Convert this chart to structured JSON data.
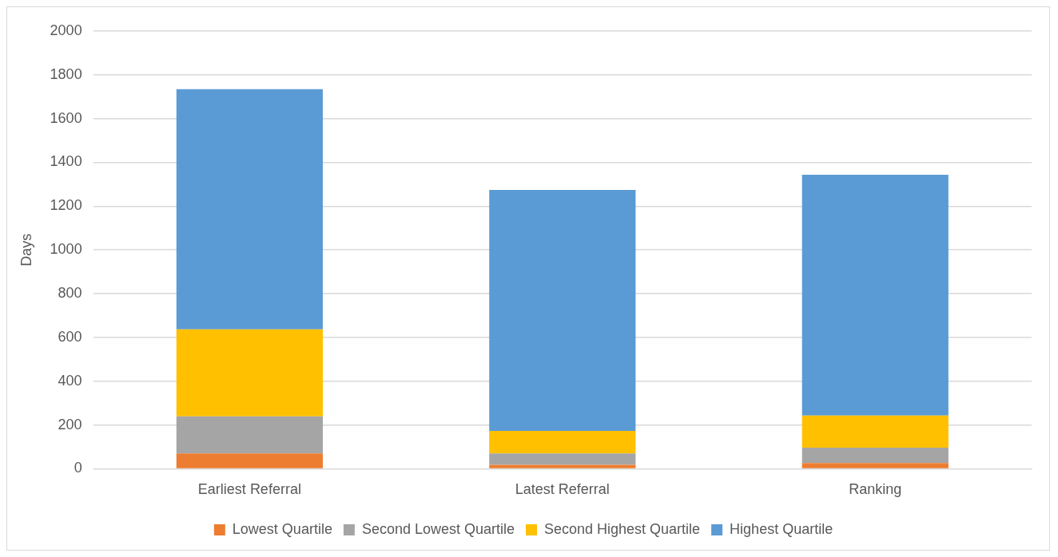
{
  "chart_data": {
    "type": "bar",
    "stacked": true,
    "ylabel": "Days",
    "categories": [
      "Earliest Referral",
      "Latest Referral",
      "Ranking"
    ],
    "series": [
      {
        "name": "Lowest Quartile",
        "color": "#ed7d31",
        "values": [
          70,
          18,
          26
        ]
      },
      {
        "name": "Second Lowest Quartile",
        "color": "#a5a5a5",
        "values": [
          169,
          52,
          70
        ]
      },
      {
        "name": "Second Highest Quartile",
        "color": "#ffc000",
        "values": [
          398,
          103,
          147
        ]
      },
      {
        "name": "Highest Quartile",
        "color": "#5b9bd5",
        "values": [
          1098,
          1101,
          1101
        ]
      }
    ],
    "ylim": [
      0,
      2000
    ],
    "yticks": [
      0,
      200,
      400,
      600,
      800,
      1000,
      1200,
      1400,
      1600,
      1800,
      2000
    ],
    "grid": "y",
    "legend": "bottom"
  }
}
